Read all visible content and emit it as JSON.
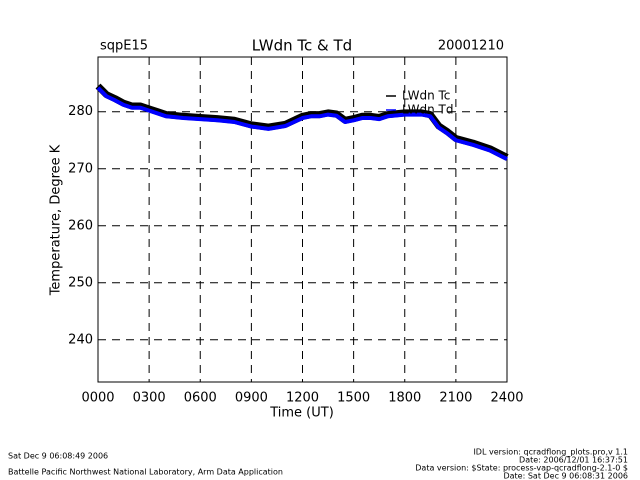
{
  "chart_data": {
    "type": "line",
    "title": "LWdn Tc & Td",
    "subtitle_left": "sqpE15",
    "subtitle_right": "20001210",
    "x_label": "Time (UT)",
    "y_label": "Temperature, Degree K",
    "x": [
      0,
      50,
      100,
      150,
      200,
      250,
      300,
      350,
      400,
      500,
      600,
      700,
      800,
      900,
      1000,
      1100,
      1150,
      1200,
      1250,
      1300,
      1350,
      1400,
      1450,
      1500,
      1550,
      1600,
      1650,
      1700,
      1800,
      1850,
      1900,
      1950,
      2000,
      2050,
      2100,
      2200,
      2300,
      2400
    ],
    "series": [
      {
        "name": "LWdn Tc",
        "color": "#000000",
        "values": [
          284.5,
          283,
          282.3,
          281.5,
          281,
          281,
          280.5,
          280,
          279.5,
          279.2,
          279,
          278.8,
          278.5,
          277.7,
          277.3,
          277.8,
          278.5,
          279.2,
          279.5,
          279.5,
          279.8,
          279.6,
          278.5,
          278.8,
          279.2,
          279.2,
          279,
          279.5,
          279.8,
          279.8,
          279.8,
          279.5,
          277.5,
          276.5,
          275.3,
          274.5,
          273.5,
          272
        ]
      },
      {
        "name": "LWdn Td",
        "color": "#0000ff",
        "values": [
          284.2,
          282.7,
          282,
          281.2,
          280.7,
          280.7,
          280.2,
          279.7,
          279.2,
          278.9,
          278.7,
          278.5,
          278.2,
          277.4,
          277,
          277.5,
          278.2,
          278.9,
          279.2,
          279.2,
          279.5,
          279.3,
          278.2,
          278.5,
          278.9,
          278.9,
          278.7,
          279.2,
          279.5,
          279.5,
          279.5,
          279.2,
          277.2,
          276.2,
          275,
          274.2,
          273.2,
          271.7
        ]
      }
    ],
    "xlim": [
      0,
      2400
    ],
    "xticks": [
      {
        "value": 0,
        "label": "0000"
      },
      {
        "value": 300,
        "label": "0300"
      },
      {
        "value": 600,
        "label": "0600"
      },
      {
        "value": 900,
        "label": "0900"
      },
      {
        "value": 1200,
        "label": "1200"
      },
      {
        "value": 1500,
        "label": "1500"
      },
      {
        "value": 1800,
        "label": "1800"
      },
      {
        "value": 2100,
        "label": "2100"
      },
      {
        "value": 2400,
        "label": "2400"
      }
    ],
    "ylim": [
      232.6,
      289.6
    ],
    "yticks": [
      240,
      250,
      260,
      270,
      280
    ],
    "grid": true
  },
  "footer": {
    "run_date": "Sat Dec  9 06:08:49 2006",
    "lab": "Battelle Pacific Northwest National Laboratory, Arm Data Application",
    "idl_version": "IDL version: qcradflong_plots.pro,v 1.1",
    "idl_date": "Date: 2006/12/01 16:37:51",
    "data_version": "Data version: $State: process-vap-qcradflong-2.1-0 $",
    "data_date": "Date: Sat Dec  9 06:08:31 2006"
  }
}
